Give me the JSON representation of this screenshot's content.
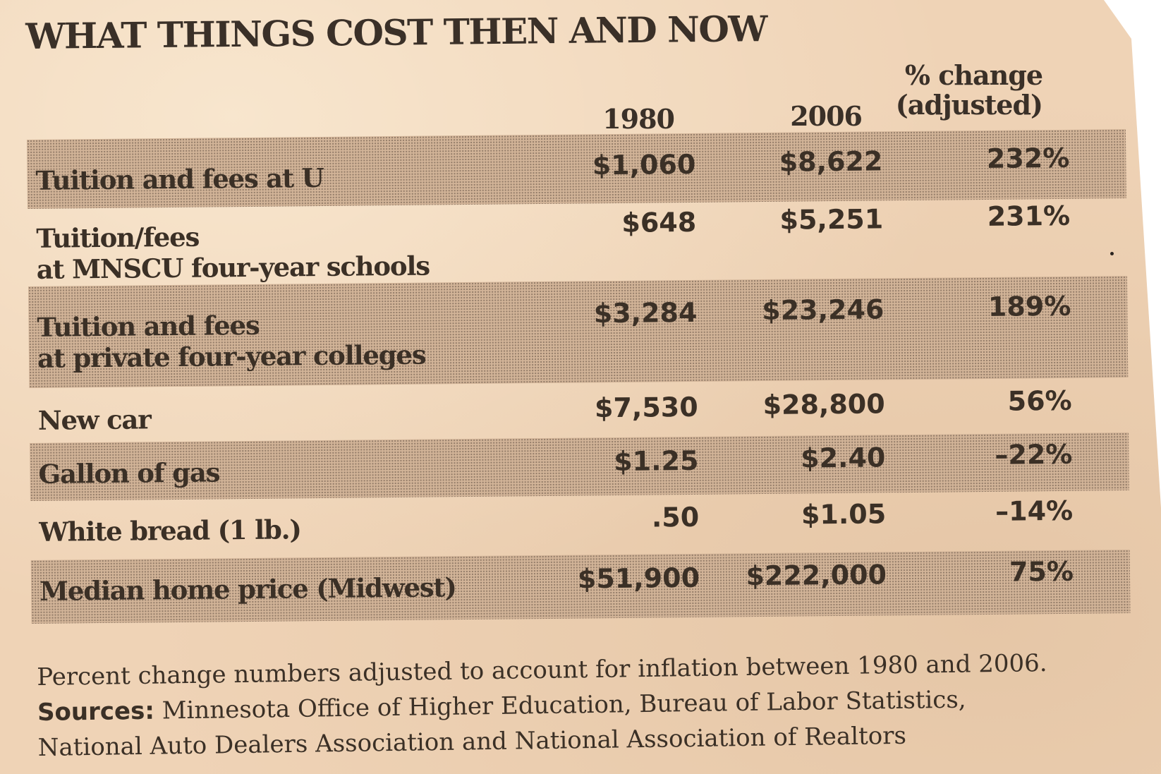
{
  "title": "WHAT THINGS COST THEN AND NOW",
  "columns": {
    "year1": "1980",
    "year2": "2006",
    "pct_line1": "% change",
    "pct_line2": "(adjusted)"
  },
  "rows": [
    {
      "label_line1": "Tuition and fees at U",
      "label_line2": "",
      "v1980": "$1,060",
      "v2006": "$8,622",
      "pct": "232%",
      "shaded": true
    },
    {
      "label_line1": "Tuition/fees",
      "label_line2": "at MNSCU four-year schools",
      "v1980": "$648",
      "v2006": "$5,251",
      "pct": "231%",
      "shaded": false
    },
    {
      "label_line1": "Tuition and fees",
      "label_line2": "at private four-year colleges",
      "v1980": "$3,284",
      "v2006": "$23,246",
      "pct": "189%",
      "shaded": true
    },
    {
      "label_line1": "New car",
      "label_line2": "",
      "v1980": "$7,530",
      "v2006": "$28,800",
      "pct": "56%",
      "shaded": false
    },
    {
      "label_line1": "Gallon of gas",
      "label_line2": "",
      "v1980": "$1.25",
      "v2006": "$2.40",
      "pct": "–22%",
      "shaded": true
    },
    {
      "label_line1": "White bread (1 lb.)",
      "label_line2": "",
      "v1980": ".50",
      "v2006": "$1.05",
      "pct": "–14%",
      "shaded": false
    },
    {
      "label_line1": "Median home price (Midwest)",
      "label_line2": "",
      "v1980": "$51,900",
      "v2006": "$222,000",
      "pct": "75%",
      "shaded": true
    }
  ],
  "footnote": {
    "note": "Percent change numbers adjusted to account for inflation between 1980 and 2006.",
    "sources_label": "Sources:",
    "sources_line1": " Minnesota Office of Higher Education, Bureau of Labor Statistics,",
    "sources_line2": "National Auto Dealers Association and National Association of Realtors"
  }
}
